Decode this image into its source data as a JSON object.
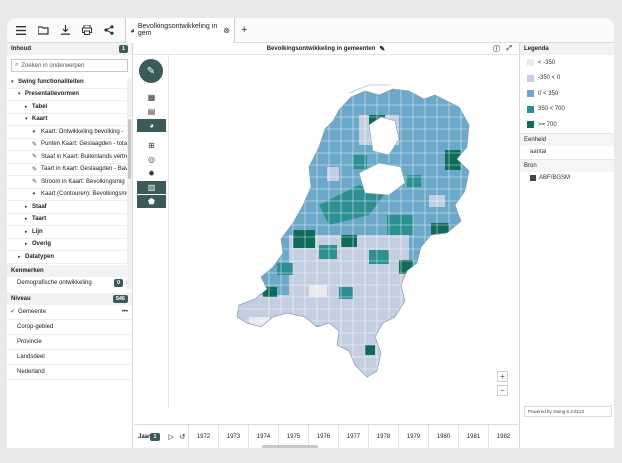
{
  "toolbar": {
    "icons": [
      "menu-icon",
      "folder-open-icon",
      "download-icon",
      "print-icon",
      "share-icon"
    ]
  },
  "tab": {
    "label": "Bevolkingsontwikkeling in gem",
    "close": "⊗",
    "add": "+"
  },
  "left": {
    "inhoud_label": "Inhoud",
    "inhoud_count": "1",
    "search_placeholder": "Zoeken in onderwerpen",
    "tree": [
      {
        "label": "Swing functionaliteiten",
        "level": 0,
        "arrow": "▾",
        "bold": true
      },
      {
        "label": "Presentatievormen",
        "level": 1,
        "arrow": "▾",
        "bold": true
      },
      {
        "label": "Tabel",
        "level": 2,
        "arrow": "▸",
        "bold": true
      },
      {
        "label": "Kaart",
        "level": 2,
        "arrow": "▾",
        "bold": true
      },
      {
        "label": "Kaart: Ontwikkeling bevolking -",
        "level": 3,
        "icon": "◕"
      },
      {
        "label": "Punten Kaart: Geslaagden - total",
        "level": 3,
        "icon": "✎"
      },
      {
        "label": "Staaf in Kaart: Buitenlands vertre",
        "level": 3,
        "icon": "✎"
      },
      {
        "label": "Taart in Kaart: Geslaagden - Bave",
        "level": 3,
        "icon": "✎"
      },
      {
        "label": "Stroom in Kaart: Bevolkingsmig",
        "level": 3,
        "icon": "✎"
      },
      {
        "label": "Kaart (Contouren): Bevolkingsme",
        "level": 3,
        "icon": "◕"
      },
      {
        "label": "Staaf",
        "level": 2,
        "arrow": "▸",
        "bold": true
      },
      {
        "label": "Taart",
        "level": 2,
        "arrow": "▸",
        "bold": true
      },
      {
        "label": "Lijn",
        "level": 2,
        "arrow": "▸",
        "bold": true
      },
      {
        "label": "Overig",
        "level": 2,
        "arrow": "▸",
        "bold": true
      },
      {
        "label": "Datatypen",
        "level": 1,
        "arrow": "▸",
        "bold": true
      }
    ],
    "kenmerken_label": "Kenmerken",
    "kenmerken_item": "Demografische ontwikkeling",
    "kenmerken_count": "0",
    "niveau_label": "Niveau",
    "niveau_count": "546",
    "niveau_items": [
      "Gemeente",
      "Corop-gebied",
      "Provincie",
      "Landsdeel",
      "Nederland"
    ],
    "niveau_more": "•••"
  },
  "center": {
    "title": "Bevolkingsontwikkeling in gemeenten",
    "zoom_in": "+",
    "zoom_out": "−"
  },
  "timeline": {
    "label": "Jaar",
    "count": "1",
    "play": "▷",
    "reset": "↺",
    "years": [
      "1972",
      "1973",
      "1974",
      "1975",
      "1976",
      "1977",
      "1978",
      "1979",
      "1980",
      "1981",
      "1982"
    ]
  },
  "legend": {
    "title": "Legenda",
    "items": [
      {
        "label": "< -350",
        "color": "#e8eaf0"
      },
      {
        "label": "-350 < 0",
        "color": "#c3cee0"
      },
      {
        "label": "0 < 350",
        "color": "#6ba8c9"
      },
      {
        "label": "350 < 700",
        "color": "#2e8f93"
      },
      {
        "label": ">= 700",
        "color": "#0f6b5a"
      }
    ],
    "eenheid_label": "Eenheid",
    "eenheid_value": "aantal",
    "bron_label": "Bron",
    "bron_value": "ABF/BGSM",
    "powered": "Powered by Swing 6.3.9123"
  }
}
